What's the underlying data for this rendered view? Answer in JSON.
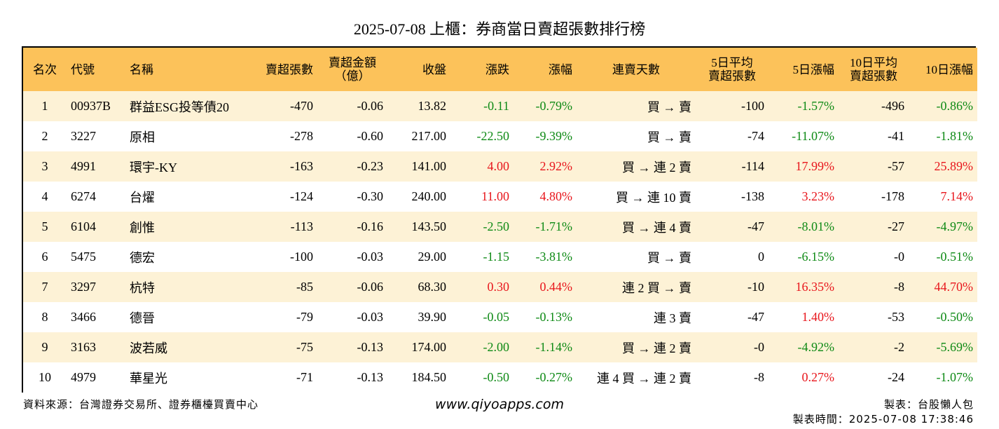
{
  "title": "2025-07-08 上櫃：券商當日賣超張數排行榜",
  "columns": [
    "名次",
    "代號",
    "名稱",
    "賣超張數",
    "賣超金額\n（億）",
    "收盤",
    "漲跌",
    "漲幅",
    "連賣天數",
    "5日平均\n賣超張數",
    "5日漲幅",
    "10日平均\n賣超張數",
    "10日漲幅"
  ],
  "rows": [
    [
      "1",
      "00937B",
      "群益ESG投等債20",
      "-470",
      "-0.06",
      "13.82",
      "-0.11",
      "-0.79%",
      "買 → 賣",
      "-100",
      "-1.57%",
      "-496",
      "-0.86%"
    ],
    [
      "2",
      "3227",
      "原相",
      "-278",
      "-0.60",
      "217.00",
      "-22.50",
      "-9.39%",
      "買 → 賣",
      "-74",
      "-11.07%",
      "-41",
      "-1.81%"
    ],
    [
      "3",
      "4991",
      "環宇-KY",
      "-163",
      "-0.23",
      "141.00",
      "4.00",
      "2.92%",
      "買 → 連 2 賣",
      "-114",
      "17.99%",
      "-57",
      "25.89%"
    ],
    [
      "4",
      "6274",
      "台燿",
      "-124",
      "-0.30",
      "240.00",
      "11.00",
      "4.80%",
      "買 → 連 10 賣",
      "-138",
      "3.23%",
      "-178",
      "7.14%"
    ],
    [
      "5",
      "6104",
      "創惟",
      "-113",
      "-0.16",
      "143.50",
      "-2.50",
      "-1.71%",
      "買 → 連 4 賣",
      "-47",
      "-8.01%",
      "-27",
      "-4.97%"
    ],
    [
      "6",
      "5475",
      "德宏",
      "-100",
      "-0.03",
      "29.00",
      "-1.15",
      "-3.81%",
      "買 → 賣",
      "0",
      "-6.15%",
      "-0",
      "-0.51%"
    ],
    [
      "7",
      "3297",
      "杭特",
      "-85",
      "-0.06",
      "68.30",
      "0.30",
      "0.44%",
      "連 2 買 → 賣",
      "-10",
      "16.35%",
      "-8",
      "44.70%"
    ],
    [
      "8",
      "3466",
      "德晉",
      "-79",
      "-0.03",
      "39.90",
      "-0.05",
      "-0.13%",
      "連 3 賣",
      "-47",
      "1.40%",
      "-53",
      "-0.50%"
    ],
    [
      "9",
      "3163",
      "波若威",
      "-75",
      "-0.13",
      "174.00",
      "-2.00",
      "-1.14%",
      "買 → 連 2 賣",
      "-0",
      "-4.92%",
      "-2",
      "-5.69%"
    ],
    [
      "10",
      "4979",
      "華星光",
      "-71",
      "-0.13",
      "184.50",
      "-0.50",
      "-0.27%",
      "連 4 買 → 連 2 賣",
      "-8",
      "0.27%",
      "-24",
      "-1.07%"
    ]
  ],
  "footer": {
    "source": "資料來源：台灣證券交易所、證券櫃檯買賣中心",
    "website": "www.qiyoapps.com",
    "maker": "製表：台股懶人包",
    "time": "製表時間：2025-07-08 17:38:46"
  },
  "colors": {
    "header": "#fcc25a",
    "stripe": "#fdf2d6",
    "up": "#e8161c",
    "down": "#0e8a15"
  }
}
